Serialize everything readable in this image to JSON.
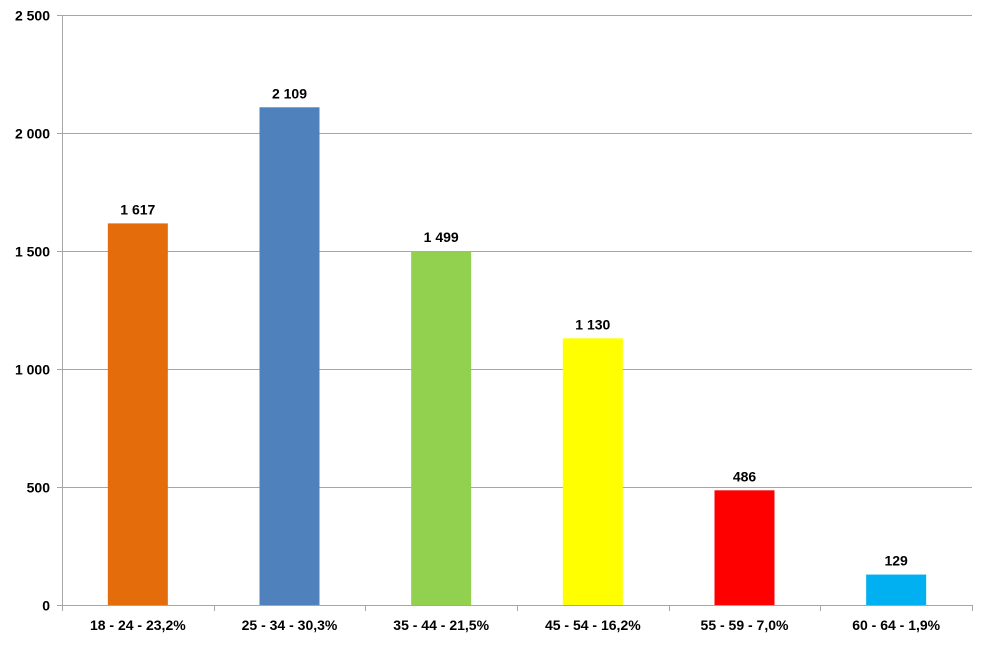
{
  "chart_data": {
    "type": "bar",
    "categories": [
      "18 - 24 - 23,2%",
      "25 - 34 - 30,3%",
      "35 - 44 - 21,5%",
      "45 - 54 - 16,2%",
      "55 - 59 - 7,0%",
      "60 - 64 - 1,9%"
    ],
    "values": [
      1617,
      2109,
      1499,
      1130,
      486,
      129
    ],
    "data_labels": [
      "1 617",
      "2 109",
      "1 499",
      "1 130",
      "486",
      "129"
    ],
    "bar_colors": [
      "#e46c0a",
      "#4f81bd",
      "#92d050",
      "#ffff00",
      "#ff0000",
      "#00b0f0"
    ],
    "ylim": [
      0,
      2500
    ],
    "yticks": [
      0,
      500,
      1000,
      1500,
      2000,
      2500
    ],
    "ytick_labels": [
      "0",
      "500",
      "1 000",
      "1 500",
      "2 000",
      "2 500"
    ],
    "grid": true,
    "gridline_color": "#a6a6a6",
    "axis_color": "#a6a6a6",
    "title": "",
    "xlabel": "",
    "ylabel": ""
  }
}
